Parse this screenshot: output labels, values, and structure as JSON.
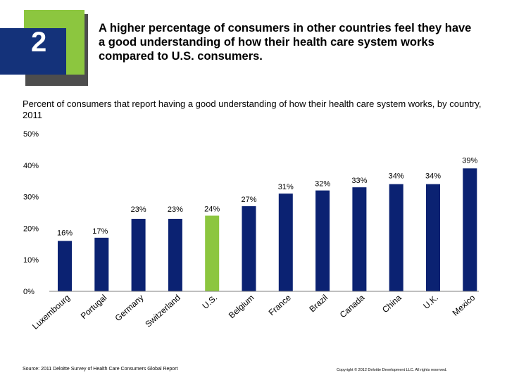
{
  "slide": {
    "number": "2",
    "headline": "A higher percentage of consumers in other countries feel they have a good understanding of how their health care system works compared to U.S. consumers."
  },
  "colors": {
    "bar": "#0b2272",
    "highlight": "#8cc63f",
    "badge_dark": "#4d4d4d",
    "badge_green": "#8cc63f",
    "badge_blue": "#14327a"
  },
  "footer": {
    "source": "Source: 2011 Deloitte Survey of Health Care Consumers Global Report",
    "copyright": "Copyright © 2012 Deloitte Development LLC. All rights reserved."
  },
  "chart_data": {
    "type": "bar",
    "title": "Percent of consumers that report having a good understanding of how their health care system works, by country, 2011",
    "categories": [
      "Luxembourg",
      "Portugal",
      "Germany",
      "Switzerland",
      "U.S.",
      "Belgium",
      "France",
      "Brazil",
      "Canada",
      "China",
      "U.K.",
      "Mexico"
    ],
    "values": [
      16,
      17,
      23,
      23,
      24,
      27,
      31,
      32,
      33,
      34,
      34,
      39
    ],
    "value_labels": [
      "16%",
      "17%",
      "23%",
      "23%",
      "24%",
      "27%",
      "31%",
      "32%",
      "33%",
      "34%",
      "34%",
      "39%"
    ],
    "highlight_category": "U.S.",
    "ylim": [
      0,
      50
    ],
    "yticks": [
      0,
      10,
      20,
      30,
      40,
      50
    ],
    "ytick_labels": [
      "0%",
      "10%",
      "20%",
      "30%",
      "40%",
      "50%"
    ],
    "xlabel": "",
    "ylabel": "",
    "grid": false
  }
}
